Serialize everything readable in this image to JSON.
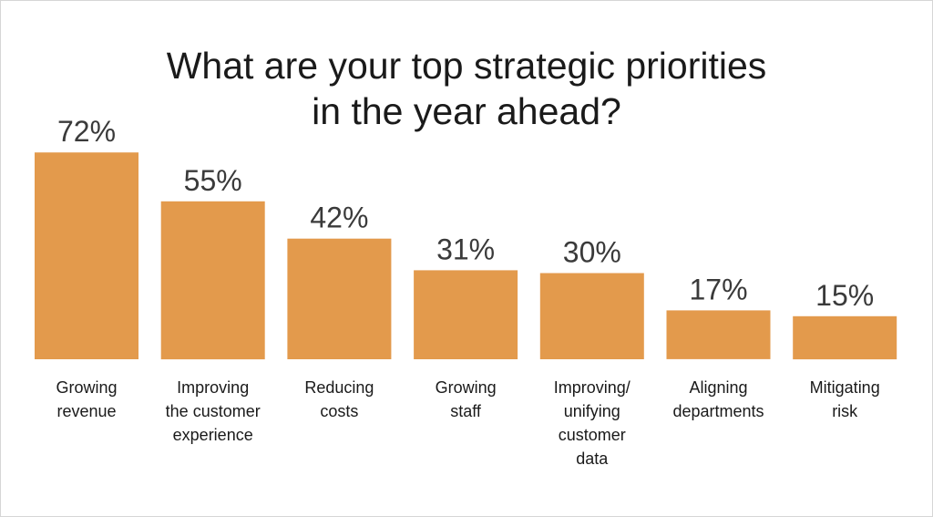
{
  "chart_data": {
    "type": "bar",
    "title_lines": [
      "What are your top strategic priorities",
      "in the year ahead?"
    ],
    "categories": [
      [
        "Growing",
        "revenue"
      ],
      [
        "Improving",
        "the customer",
        "experience"
      ],
      [
        "Reducing",
        "costs"
      ],
      [
        "Growing",
        "staff"
      ],
      [
        "Improving/",
        "unifying",
        "customer",
        "data"
      ],
      [
        "Aligning",
        "departments"
      ],
      [
        "Mitigating",
        "risk"
      ]
    ],
    "values": [
      72,
      55,
      42,
      31,
      30,
      17,
      15
    ],
    "value_labels": [
      "72%",
      "55%",
      "42%",
      "31%",
      "30%",
      "17%",
      "15%"
    ],
    "unit": "%",
    "ylim": [
      0,
      100
    ],
    "grid": false,
    "legend": "none",
    "bar_color": "#E39A4C"
  }
}
